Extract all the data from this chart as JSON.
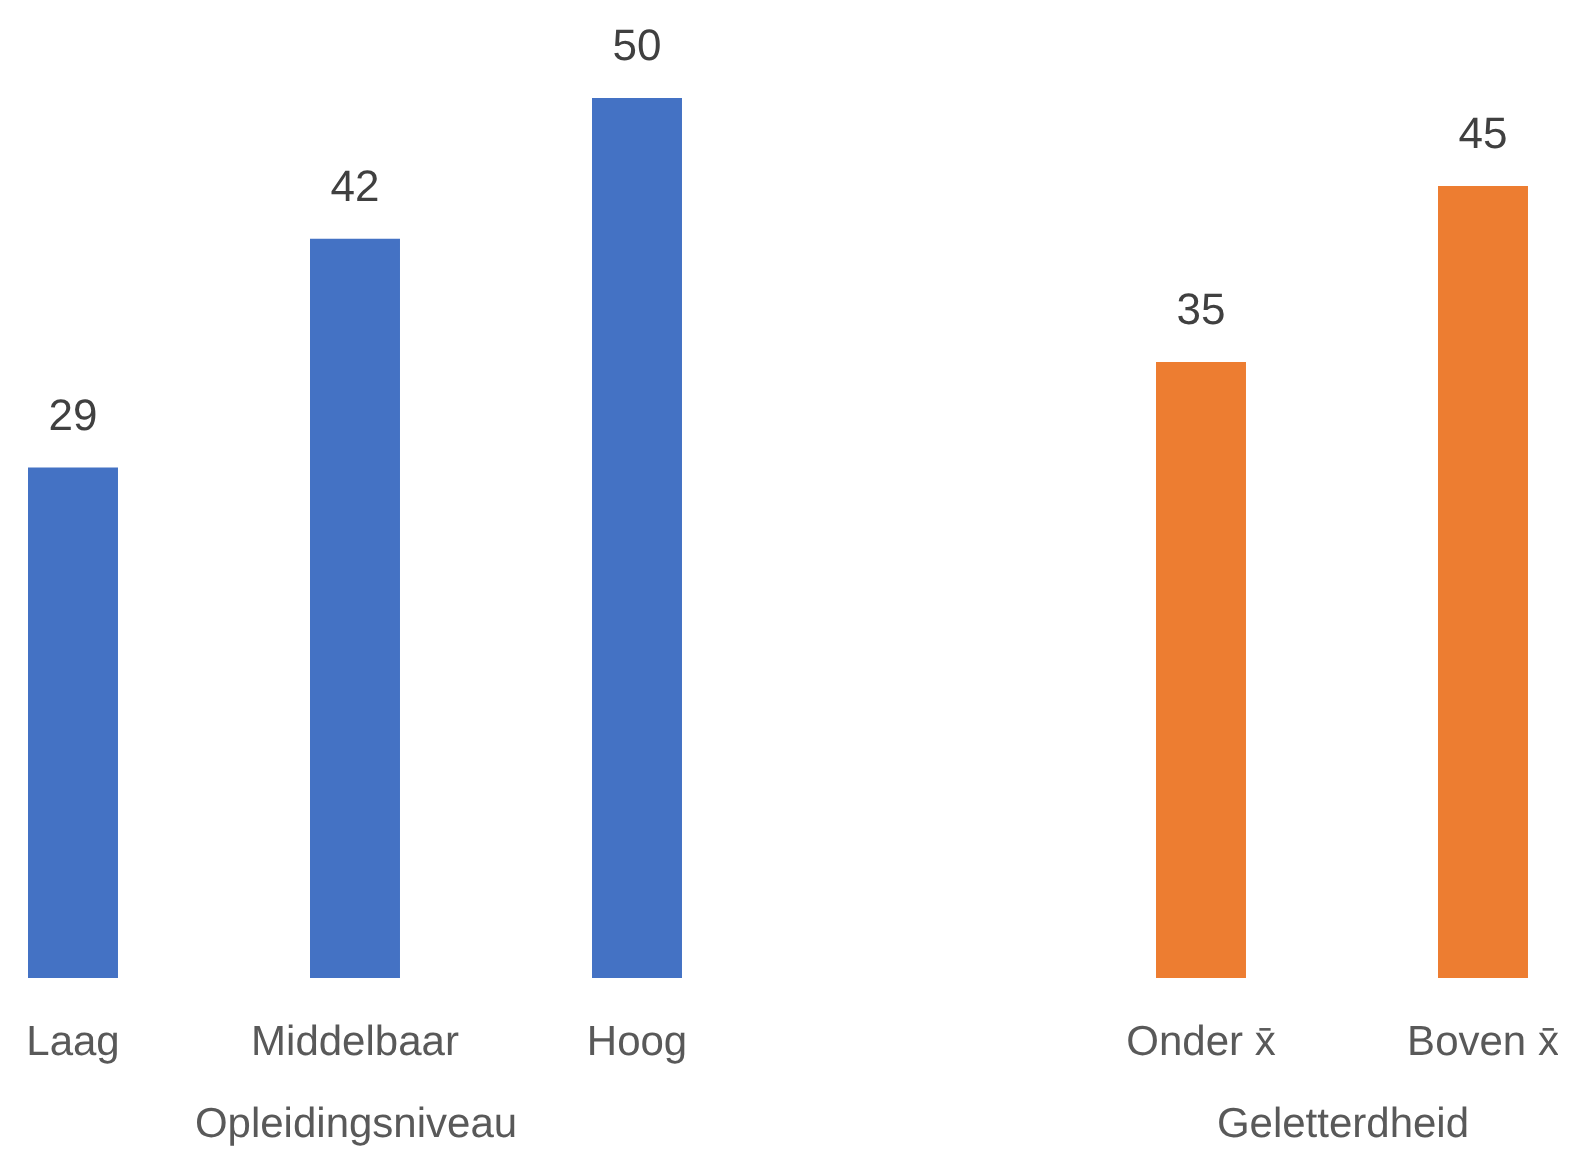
{
  "chart_data": [
    {
      "type": "bar",
      "categories": [
        "Laag",
        "Middelbaar",
        "Hoog"
      ],
      "values": [
        29,
        42,
        50
      ],
      "color": "#4472c4",
      "xlabel": "Opleidingsniveau",
      "data_labels": true,
      "tick_labels": "x"
    },
    {
      "type": "bar",
      "categories": [
        "Onder x̄",
        "Boven x̄"
      ],
      "values": [
        35,
        45
      ],
      "color": "#ed7d31",
      "xlabel": "Geletterdheid",
      "data_labels": true,
      "tick_labels": "x"
    }
  ]
}
